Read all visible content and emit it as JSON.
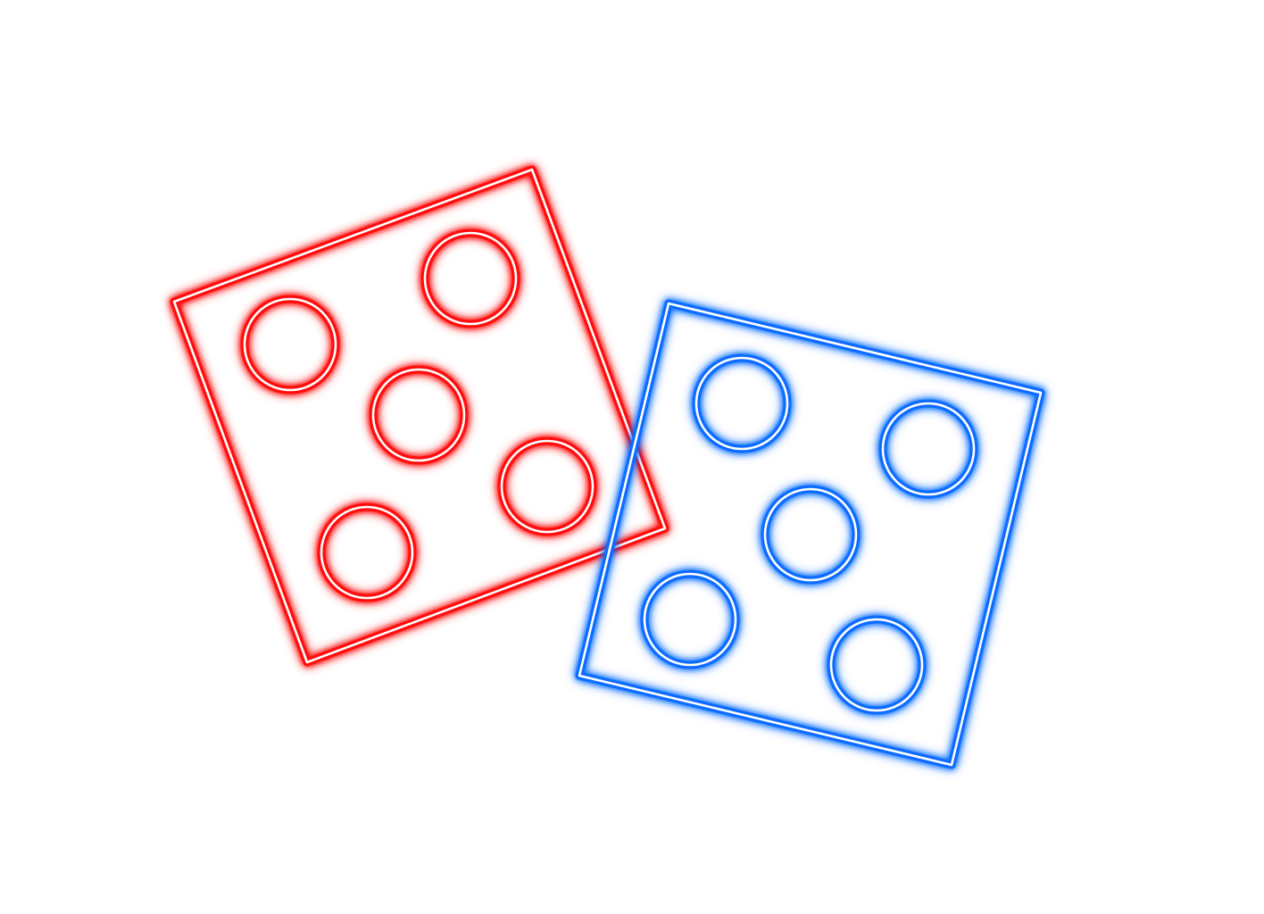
{
  "background": "#ffffff",
  "dice": [
    {
      "name": "red-die",
      "color": "#ff0a0a",
      "core": "#ffffff",
      "pips_shown": 5
    },
    {
      "name": "blue-die",
      "color": "#0a6cff",
      "core": "#ffffff",
      "pips_shown": 5
    }
  ]
}
